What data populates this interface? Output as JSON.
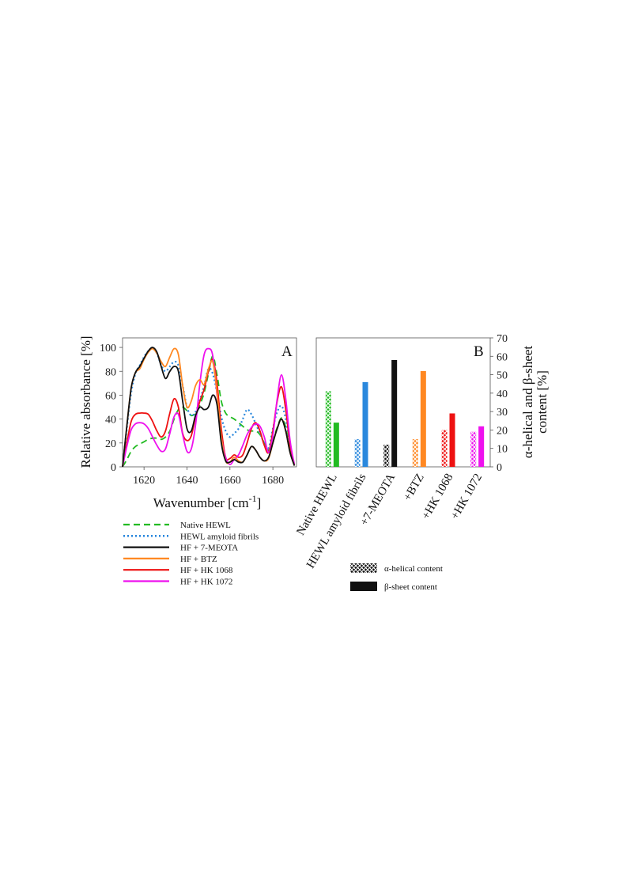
{
  "chart_data": [
    {
      "type": "line",
      "panel_label": "A",
      "xlabel": "Wavenumber [cm",
      "xlabel_sup": "-1",
      "xlabel_close": "]",
      "ylabel": "Relative absorbance [%]",
      "xlim": [
        1610,
        1691
      ],
      "ylim": [
        0,
        108
      ],
      "xticks": [
        "1620",
        "1640",
        "1660",
        "1680"
      ],
      "yticks": [
        "0",
        "20",
        "40",
        "60",
        "80",
        "100"
      ],
      "x": [
        1610,
        1612,
        1614,
        1616,
        1618,
        1620,
        1622,
        1624,
        1626,
        1628,
        1630,
        1632,
        1634,
        1636,
        1638,
        1640,
        1642,
        1644,
        1646,
        1648,
        1650,
        1652,
        1654,
        1656,
        1658,
        1660,
        1662,
        1664,
        1666,
        1668,
        1670,
        1672,
        1674,
        1676,
        1678,
        1680,
        1682,
        1684,
        1686,
        1688,
        1690
      ],
      "series": [
        {
          "name": "Native HEWL",
          "color": "#22bb22",
          "dash": "8,5",
          "values": [
            0,
            6,
            13,
            17,
            19,
            21,
            23,
            24,
            24,
            23,
            25,
            30,
            40,
            48,
            50,
            47,
            43,
            45,
            52,
            62,
            78,
            93,
            77,
            55,
            45,
            42,
            40,
            37,
            34,
            31,
            30,
            30,
            27,
            20,
            14,
            22,
            33,
            41,
            33,
            14,
            2
          ]
        },
        {
          "name": "HEWL amyloid fibrils",
          "color": "#2a88dd",
          "dash": "2,3",
          "values": [
            0,
            32,
            62,
            78,
            85,
            92,
            97,
            99,
            95,
            85,
            80,
            84,
            88,
            85,
            68,
            50,
            43,
            46,
            56,
            68,
            82,
            78,
            62,
            42,
            30,
            25,
            28,
            32,
            40,
            48,
            44,
            36,
            28,
            20,
            16,
            32,
            46,
            51,
            40,
            16,
            2
          ]
        },
        {
          "name": "HF + 7-MEOTA",
          "color": "#111111",
          "dash": "",
          "values": [
            0,
            34,
            66,
            79,
            84,
            91,
            97,
            100,
            96,
            84,
            74,
            80,
            84,
            80,
            55,
            32,
            30,
            43,
            50,
            48,
            50,
            60,
            52,
            20,
            5,
            4,
            6,
            4,
            4,
            10,
            17,
            14,
            8,
            5,
            8,
            20,
            32,
            40,
            30,
            12,
            1
          ]
        },
        {
          "name": "HF + BTZ",
          "color": "#ff8822",
          "dash": "",
          "values": [
            0,
            34,
            66,
            79,
            82,
            90,
            96,
            99,
            95,
            88,
            84,
            92,
            99,
            94,
            68,
            50,
            55,
            68,
            73,
            69,
            82,
            88,
            62,
            25,
            5,
            4,
            8,
            5,
            4,
            10,
            17,
            14,
            8,
            5,
            7,
            20,
            32,
            40,
            30,
            12,
            1
          ]
        },
        {
          "name": "HF + HK 1068",
          "color": "#ee1111",
          "dash": "",
          "values": [
            0,
            20,
            38,
            44,
            45,
            45,
            44,
            38,
            30,
            25,
            30,
            45,
            57,
            50,
            28,
            22,
            26,
            42,
            55,
            65,
            80,
            90,
            70,
            32,
            8,
            7,
            10,
            8,
            10,
            20,
            32,
            37,
            30,
            18,
            12,
            30,
            55,
            67,
            48,
            18,
            2
          ]
        },
        {
          "name": "HF + HK 1072",
          "color": "#ee11ee",
          "dash": "",
          "values": [
            0,
            17,
            31,
            36,
            37,
            36,
            32,
            25,
            18,
            13,
            15,
            28,
            42,
            44,
            27,
            13,
            15,
            35,
            70,
            94,
            99,
            93,
            60,
            25,
            8,
            2,
            6,
            10,
            18,
            27,
            33,
            36,
            34,
            25,
            12,
            26,
            57,
            77,
            57,
            22,
            2
          ]
        }
      ]
    },
    {
      "type": "bar",
      "panel_label": "B",
      "ylabel": "α-helical and β-sheet content [%]",
      "ylabel_line1": "α-helical and β-sheet",
      "ylabel_line2": "content [%]",
      "ylim": [
        0,
        70
      ],
      "yticks": [
        "0",
        "10",
        "20",
        "30",
        "40",
        "50",
        "60",
        "70"
      ],
      "categories": [
        "Native HEWL",
        "HEWL amyloid fibrils",
        "+7-MEOTA",
        "+BTZ",
        "+HK 1068",
        "+HK 1072"
      ],
      "colors": [
        "#22bb22",
        "#2a88dd",
        "#111111",
        "#ff8822",
        "#ee1111",
        "#ee11ee"
      ],
      "series": [
        {
          "name": "α-helical content",
          "pattern": "crosshatch",
          "values": [
            41,
            15,
            12,
            15,
            20,
            19
          ]
        },
        {
          "name": "β-sheet content",
          "pattern": "solid",
          "values": [
            24,
            46,
            58,
            52,
            29,
            22
          ]
        }
      ]
    }
  ]
}
